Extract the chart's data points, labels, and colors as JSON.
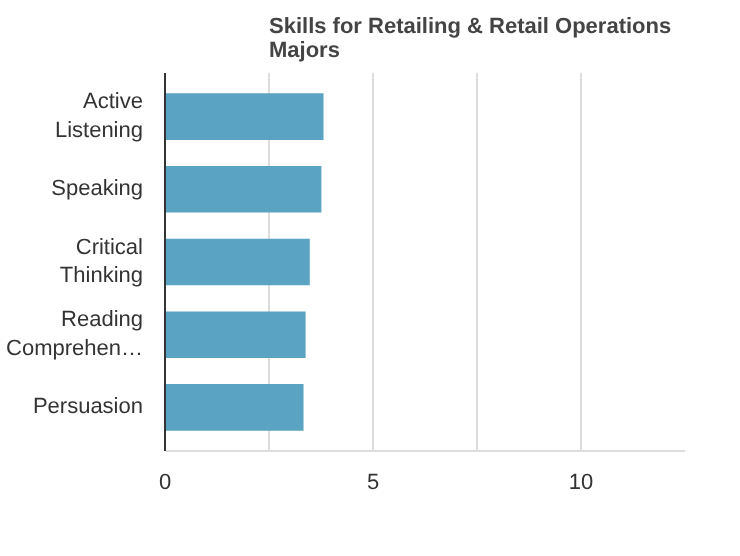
{
  "chart_data": {
    "type": "bar",
    "orientation": "horizontal",
    "title": "Skills for Retailing & Retail Operations\nMajors",
    "categories": [
      "Active\nListening",
      "Speaking",
      "Critical\nThinking",
      "Reading\nComprehen…",
      "Persuasion"
    ],
    "values": [
      3.81,
      3.76,
      3.48,
      3.38,
      3.33
    ],
    "color": "#5ba3c2",
    "xlim": [
      0,
      12.5
    ],
    "xticks": [
      0,
      {
        "value": 2.5,
        "label": null
      },
      5,
      {
        "value": 7.5,
        "label": null
      },
      10
    ],
    "grid": "x"
  }
}
